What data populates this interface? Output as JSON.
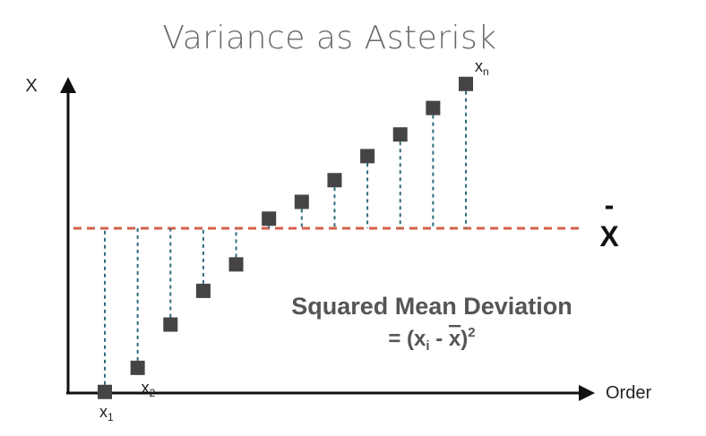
{
  "chart_data": {
    "type": "scatter",
    "title": "Variance as Asterisk",
    "ylabel": "X",
    "xlabel": "Order",
    "mean_value": 0,
    "mean_label": "X",
    "mean_bar": "-",
    "ylim": [
      -8,
      8
    ],
    "points": [
      {
        "order": 1,
        "value": -6.8,
        "label": "x",
        "sub": "1"
      },
      {
        "order": 2,
        "value": -5.8,
        "label": "x",
        "sub": "2"
      },
      {
        "order": 3,
        "value": -4.0,
        "label": "",
        "sub": ""
      },
      {
        "order": 4,
        "value": -2.6,
        "label": "",
        "sub": ""
      },
      {
        "order": 5,
        "value": -1.5,
        "label": "",
        "sub": ""
      },
      {
        "order": 6,
        "value": 0.4,
        "label": "",
        "sub": ""
      },
      {
        "order": 7,
        "value": 1.1,
        "label": "",
        "sub": ""
      },
      {
        "order": 8,
        "value": 2.0,
        "label": "",
        "sub": ""
      },
      {
        "order": 9,
        "value": 3.0,
        "label": "",
        "sub": ""
      },
      {
        "order": 10,
        "value": 3.9,
        "label": "",
        "sub": ""
      },
      {
        "order": 11,
        "value": 5.0,
        "label": "",
        "sub": ""
      },
      {
        "order": 12,
        "value": 6.0,
        "label": "x",
        "sub": "n"
      }
    ],
    "annotation_title": "Squared Mean Deviation",
    "annotation_formula_prefix": "= (x",
    "annotation_formula_sub": "i",
    "annotation_formula_mid": " - ",
    "annotation_formula_xbar": "x",
    "annotation_formula_suffix": ")",
    "annotation_formula_sup": "2"
  },
  "colors": {
    "point": "#444444",
    "mean_line": "#d4614a",
    "deviation_line": "#2f6b7c",
    "axis": "#111111"
  }
}
